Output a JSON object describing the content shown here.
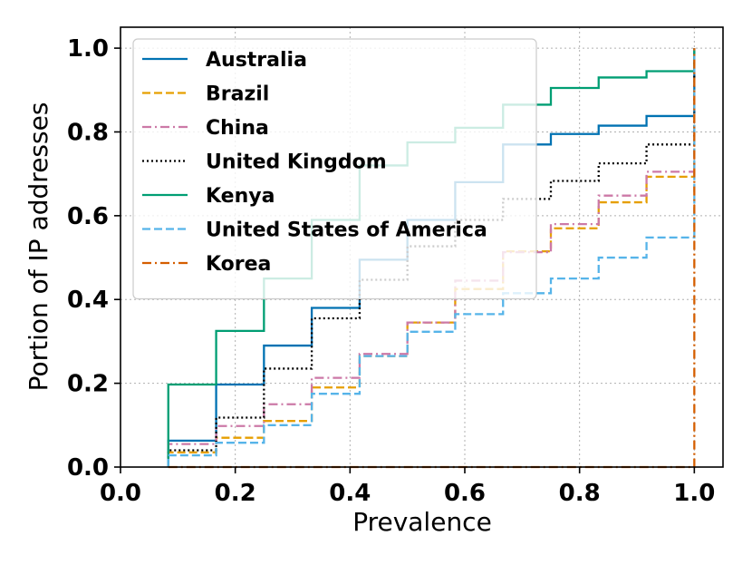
{
  "chart_data": {
    "type": "line",
    "subtype": "step-cdf",
    "title": "",
    "xlabel": "Prevalence",
    "ylabel": "Portion of IP addresses",
    "xlim": [
      0.0,
      1.05
    ],
    "ylim": [
      0.0,
      1.05
    ],
    "xticks": [
      0.0,
      0.2,
      0.4,
      0.6,
      0.8,
      1.0
    ],
    "yticks": [
      0.0,
      0.2,
      0.4,
      0.6,
      0.8,
      1.0
    ],
    "xtick_labels": [
      "0.0",
      "0.2",
      "0.4",
      "0.6",
      "0.8",
      "1.0"
    ],
    "ytick_labels": [
      "0.0",
      "0.2",
      "0.4",
      "0.6",
      "0.8",
      "1.0"
    ],
    "grid": true,
    "legend_position": "top-left",
    "x": [
      0.0833,
      0.1667,
      0.25,
      0.3333,
      0.4167,
      0.5,
      0.5833,
      0.6667,
      0.75,
      0.8333,
      0.9167,
      1.0
    ],
    "series": [
      {
        "name": "Australia",
        "color": "#0072B2",
        "dash": "solid",
        "values": [
          0.063,
          0.197,
          0.29,
          0.38,
          0.495,
          0.59,
          0.68,
          0.77,
          0.795,
          0.815,
          0.838,
          1.0
        ]
      },
      {
        "name": "Brazil",
        "color": "#E69F00",
        "dash": "dashed",
        "values": [
          0.035,
          0.07,
          0.11,
          0.19,
          0.265,
          0.345,
          0.425,
          0.515,
          0.57,
          0.632,
          0.693,
          1.0
        ]
      },
      {
        "name": "China",
        "color": "#CC79A7",
        "dash": "dashdot",
        "values": [
          0.055,
          0.098,
          0.15,
          0.213,
          0.27,
          0.345,
          0.445,
          0.513,
          0.58,
          0.648,
          0.705,
          1.0
        ]
      },
      {
        "name": "United Kingdom",
        "color": "#000000",
        "dash": "dotted",
        "values": [
          0.04,
          0.118,
          0.235,
          0.355,
          0.447,
          0.527,
          0.59,
          0.64,
          0.683,
          0.725,
          0.77,
          1.0
        ]
      },
      {
        "name": "Kenya",
        "color": "#009E73",
        "dash": "solid",
        "values": [
          0.197,
          0.325,
          0.45,
          0.59,
          0.72,
          0.775,
          0.81,
          0.865,
          0.905,
          0.93,
          0.945,
          1.0
        ]
      },
      {
        "name": "United States of America",
        "color": "#56B4E9",
        "dash": "dashed",
        "values": [
          0.028,
          0.058,
          0.1,
          0.175,
          0.265,
          0.323,
          0.365,
          0.415,
          0.45,
          0.5,
          0.548,
          1.0
        ]
      },
      {
        "name": "Korea",
        "color": "#D55E00",
        "dash": "dashdot",
        "values": [
          0.0,
          0.0,
          0.0,
          0.0,
          0.0,
          0.0,
          0.0,
          0.0,
          0.0,
          0.0,
          0.0,
          1.0
        ]
      }
    ]
  }
}
